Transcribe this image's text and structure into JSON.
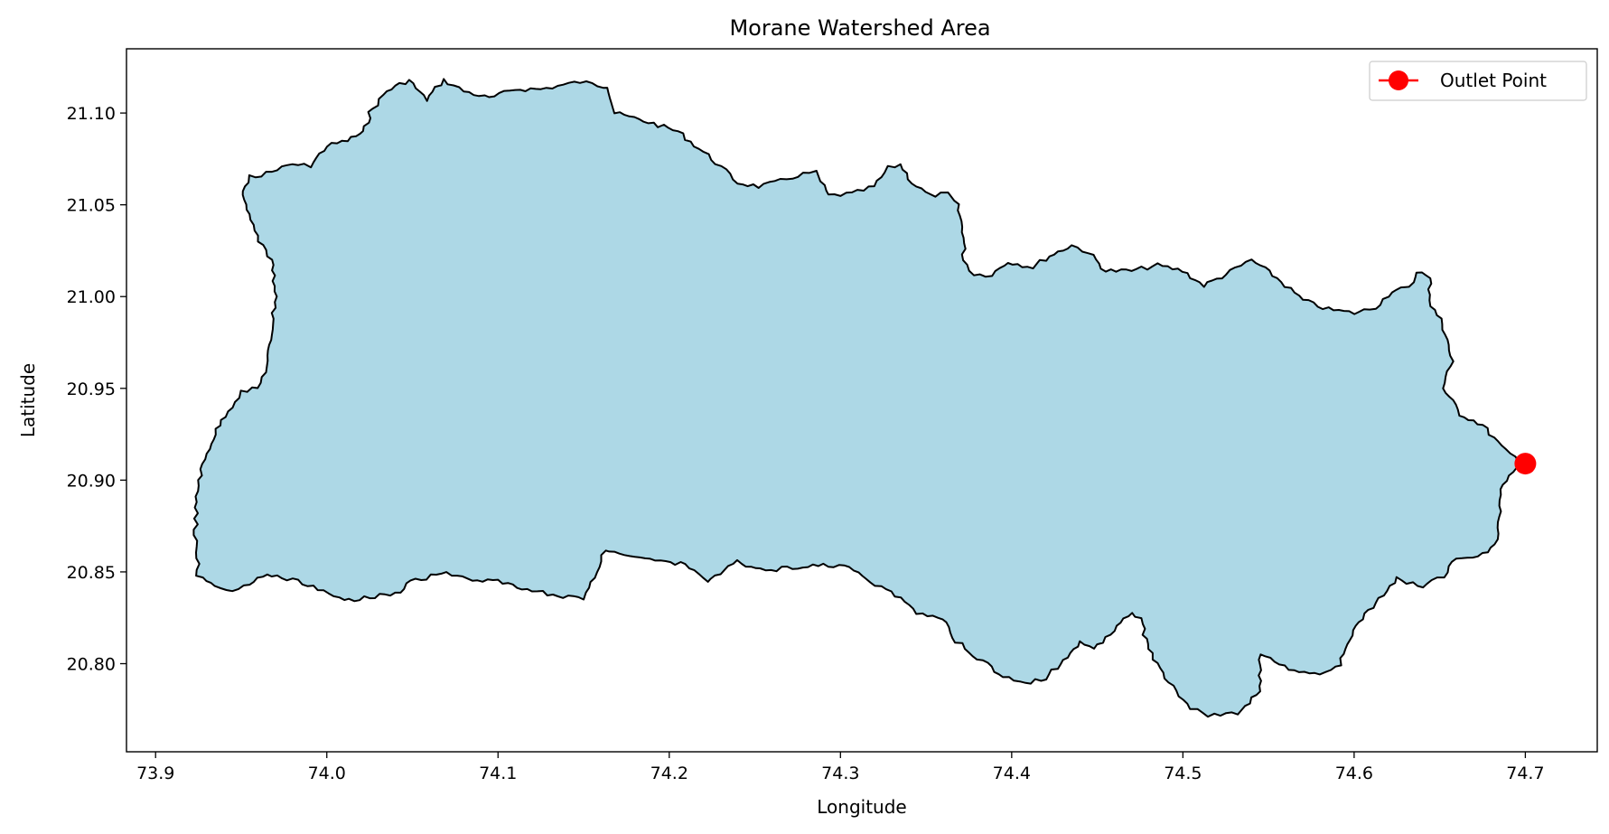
{
  "chart_data": {
    "type": "map",
    "title": "Morane Watershed Area",
    "xlabel": "Longitude",
    "ylabel": "Latitude",
    "xlim": [
      73.883,
      74.742
    ],
    "ylim": [
      20.752,
      21.135
    ],
    "x_ticks": [
      73.9,
      74.0,
      74.1,
      74.2,
      74.3,
      74.4,
      74.5,
      74.6,
      74.7
    ],
    "x_tick_labels": [
      "73.9",
      "74.0",
      "74.1",
      "74.2",
      "74.3",
      "74.4",
      "74.5",
      "74.6",
      "74.7"
    ],
    "y_ticks": [
      20.8,
      20.85,
      20.9,
      20.95,
      21.0,
      21.05,
      21.1
    ],
    "y_tick_labels": [
      "20.80",
      "20.85",
      "20.90",
      "20.95",
      "21.00",
      "21.05",
      "21.10"
    ],
    "grid": false,
    "legend": {
      "position": "top-right",
      "entries": [
        {
          "label": "Outlet Point",
          "marker": "circle",
          "color": "#ff0000"
        }
      ]
    },
    "watershed": {
      "fill": "#add8e6",
      "edge": "#000000",
      "boundary": [
        [
          73.968,
          21.068
        ],
        [
          73.98,
          21.072
        ],
        [
          73.99,
          21.071
        ],
        [
          74.0,
          21.082
        ],
        [
          74.012,
          21.085
        ],
        [
          74.022,
          21.09
        ],
        [
          74.025,
          21.1
        ],
        [
          74.035,
          21.112
        ],
        [
          74.048,
          21.118
        ],
        [
          74.058,
          21.107
        ],
        [
          74.068,
          21.118
        ],
        [
          74.08,
          21.112
        ],
        [
          74.095,
          21.108
        ],
        [
          74.11,
          21.113
        ],
        [
          74.125,
          21.113
        ],
        [
          74.148,
          21.117
        ],
        [
          74.165,
          21.114
        ],
        [
          74.168,
          21.1
        ],
        [
          74.188,
          21.095
        ],
        [
          74.205,
          21.09
        ],
        [
          74.225,
          21.075
        ],
        [
          74.24,
          21.062
        ],
        [
          74.252,
          21.06
        ],
        [
          74.262,
          21.062
        ],
        [
          74.275,
          21.066
        ],
        [
          74.285,
          21.068
        ],
        [
          74.293,
          21.055
        ],
        [
          74.307,
          21.056
        ],
        [
          74.32,
          21.06
        ],
        [
          74.328,
          21.07
        ],
        [
          74.335,
          21.072
        ],
        [
          74.342,
          21.062
        ],
        [
          74.352,
          21.055
        ],
        [
          74.362,
          21.056
        ],
        [
          74.368,
          21.05
        ],
        [
          74.372,
          21.035
        ],
        [
          74.372,
          21.02
        ],
        [
          74.378,
          21.012
        ],
        [
          74.388,
          21.012
        ],
        [
          74.398,
          21.019
        ],
        [
          74.412,
          21.016
        ],
        [
          74.422,
          21.022
        ],
        [
          74.435,
          21.028
        ],
        [
          74.445,
          21.024
        ],
        [
          74.455,
          21.014
        ],
        [
          74.47,
          21.014
        ],
        [
          74.485,
          21.017
        ],
        [
          74.5,
          21.014
        ],
        [
          74.512,
          21.006
        ],
        [
          74.525,
          21.012
        ],
        [
          74.54,
          21.02
        ],
        [
          74.555,
          21.01
        ],
        [
          74.57,
          20.998
        ],
        [
          74.585,
          20.993
        ],
        [
          74.6,
          20.991
        ],
        [
          74.612,
          20.994
        ],
        [
          74.622,
          21.003
        ],
        [
          74.633,
          21.005
        ],
        [
          74.637,
          21.014
        ],
        [
          74.644,
          21.01
        ],
        [
          74.645,
          20.995
        ],
        [
          74.652,
          20.985
        ],
        [
          74.657,
          20.965
        ],
        [
          74.652,
          20.95
        ],
        [
          74.662,
          20.936
        ],
        [
          74.675,
          20.93
        ],
        [
          74.688,
          20.916
        ],
        [
          74.7,
          20.909
        ],
        [
          74.692,
          20.905
        ],
        [
          74.685,
          20.895
        ],
        [
          74.685,
          20.88
        ],
        [
          74.682,
          20.865
        ],
        [
          74.675,
          20.86
        ],
        [
          74.66,
          20.857
        ],
        [
          74.652,
          20.848
        ],
        [
          74.64,
          20.841
        ],
        [
          74.625,
          20.847
        ],
        [
          74.615,
          20.835
        ],
        [
          74.6,
          20.821
        ],
        [
          74.592,
          20.8
        ],
        [
          74.58,
          20.795
        ],
        [
          74.562,
          20.797
        ],
        [
          74.545,
          20.805
        ],
        [
          74.545,
          20.785
        ],
        [
          74.532,
          20.773
        ],
        [
          74.515,
          20.772
        ],
        [
          74.505,
          20.776
        ],
        [
          74.492,
          20.79
        ],
        [
          74.48,
          20.808
        ],
        [
          74.475,
          20.824
        ],
        [
          74.47,
          20.828
        ],
        [
          74.46,
          20.818
        ],
        [
          74.448,
          20.808
        ],
        [
          74.44,
          20.812
        ],
        [
          74.428,
          20.8
        ],
        [
          74.42,
          20.792
        ],
        [
          74.408,
          20.789
        ],
        [
          74.398,
          20.792
        ],
        [
          74.388,
          20.798
        ],
        [
          74.378,
          20.805
        ],
        [
          74.368,
          20.812
        ],
        [
          74.36,
          20.825
        ],
        [
          74.345,
          20.828
        ],
        [
          74.332,
          20.837
        ],
        [
          74.318,
          20.845
        ],
        [
          74.305,
          20.852
        ],
        [
          74.29,
          20.854
        ],
        [
          74.272,
          20.852
        ],
        [
          74.25,
          20.851
        ],
        [
          74.24,
          20.856
        ],
        [
          74.222,
          20.844
        ],
        [
          74.212,
          20.853
        ],
        [
          74.198,
          20.856
        ],
        [
          74.18,
          20.859
        ],
        [
          74.162,
          20.862
        ],
        [
          74.157,
          20.85
        ],
        [
          74.15,
          20.836
        ],
        [
          74.138,
          20.836
        ],
        [
          74.12,
          20.84
        ],
        [
          74.1,
          20.845
        ],
        [
          74.085,
          20.845
        ],
        [
          74.07,
          20.849
        ],
        [
          74.052,
          20.846
        ],
        [
          74.04,
          20.838
        ],
        [
          74.022,
          20.836
        ],
        [
          74.01,
          20.834
        ],
        [
          73.995,
          20.841
        ],
        [
          73.98,
          20.846
        ],
        [
          73.965,
          20.849
        ],
        [
          73.955,
          20.843
        ],
        [
          73.945,
          20.84
        ],
        [
          73.935,
          20.843
        ],
        [
          73.925,
          20.848
        ],
        [
          73.923,
          20.87
        ],
        [
          73.925,
          20.9
        ],
        [
          73.932,
          20.92
        ],
        [
          73.94,
          20.935
        ],
        [
          73.95,
          20.948
        ],
        [
          73.96,
          20.95
        ],
        [
          73.966,
          20.965
        ],
        [
          73.968,
          20.985
        ],
        [
          73.97,
          21.0
        ],
        [
          73.968,
          21.02
        ],
        [
          73.96,
          21.03
        ],
        [
          73.955,
          21.045
        ],
        [
          73.95,
          21.058
        ],
        [
          73.955,
          21.065
        ]
      ]
    },
    "outlet": {
      "label": "Outlet Point",
      "lon": 74.7,
      "lat": 20.909,
      "color": "#ff0000"
    }
  }
}
